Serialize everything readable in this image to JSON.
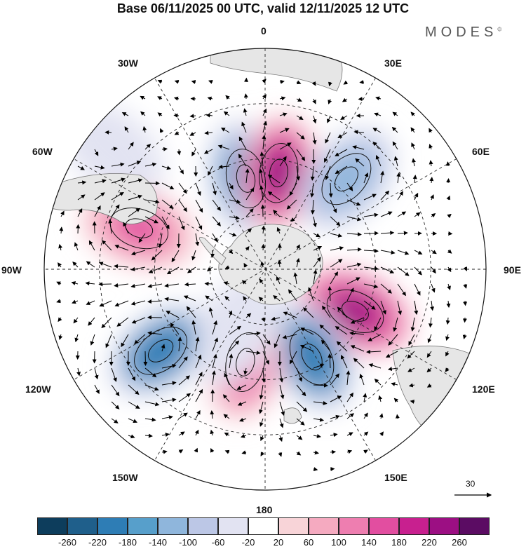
{
  "title": "Base 06/11/2025 00 UTC, valid 12/11/2025 12 UTC",
  "logo": "MODES",
  "logo_mark": "©",
  "longitude_labels": {
    "lon_0": "0",
    "lon_30e": "30E",
    "lon_60e": "60E",
    "lon_90e": "90E",
    "lon_120e": "120E",
    "lon_150e": "150E",
    "lon_180": "180",
    "lon_150w": "150W",
    "lon_120w": "120W",
    "lon_90w": "90W",
    "lon_60w": "60W",
    "lon_30w": "30W"
  },
  "reference_vector": "30",
  "colorbar": {
    "labels": [
      "-260",
      "-220",
      "-180",
      "-140",
      "-100",
      "-60",
      "-20",
      "20",
      "60",
      "100",
      "140",
      "180",
      "220",
      "260"
    ],
    "colors": [
      "#0d3d5c",
      "#1f5f8b",
      "#2e7db5",
      "#579fcb",
      "#8fb6dc",
      "#bcc7e6",
      "#e2e3f2",
      "#ffffff",
      "#f8d4d8",
      "#f5aac0",
      "#ee7eb0",
      "#e24ea0",
      "#c8208f",
      "#9c0f83",
      "#5b0c63"
    ]
  },
  "anomaly_centers": [
    {
      "sign": "negative",
      "level": -200,
      "lon": -12,
      "colat": 0.42
    },
    {
      "sign": "positive",
      "level": 230,
      "lon": 8,
      "colat": 0.44
    },
    {
      "sign": "negative",
      "level": -140,
      "lon": 42,
      "colat": 0.55
    },
    {
      "sign": "positive",
      "level": 250,
      "lon": 115,
      "colat": 0.45
    },
    {
      "sign": "negative",
      "level": -220,
      "lon": 152,
      "colat": 0.45
    },
    {
      "sign": "positive",
      "level": 160,
      "lon": -168,
      "colat": 0.43
    },
    {
      "sign": "negative",
      "level": -220,
      "lon": -128,
      "colat": 0.6
    },
    {
      "sign": "negative",
      "level": -60,
      "lon": -155,
      "colat": 0.3
    },
    {
      "sign": "positive",
      "level": 140,
      "lon": -72,
      "colat": 0.6
    },
    {
      "sign": "negative",
      "level": -60,
      "lon": -52,
      "colat": 0.88
    }
  ]
}
